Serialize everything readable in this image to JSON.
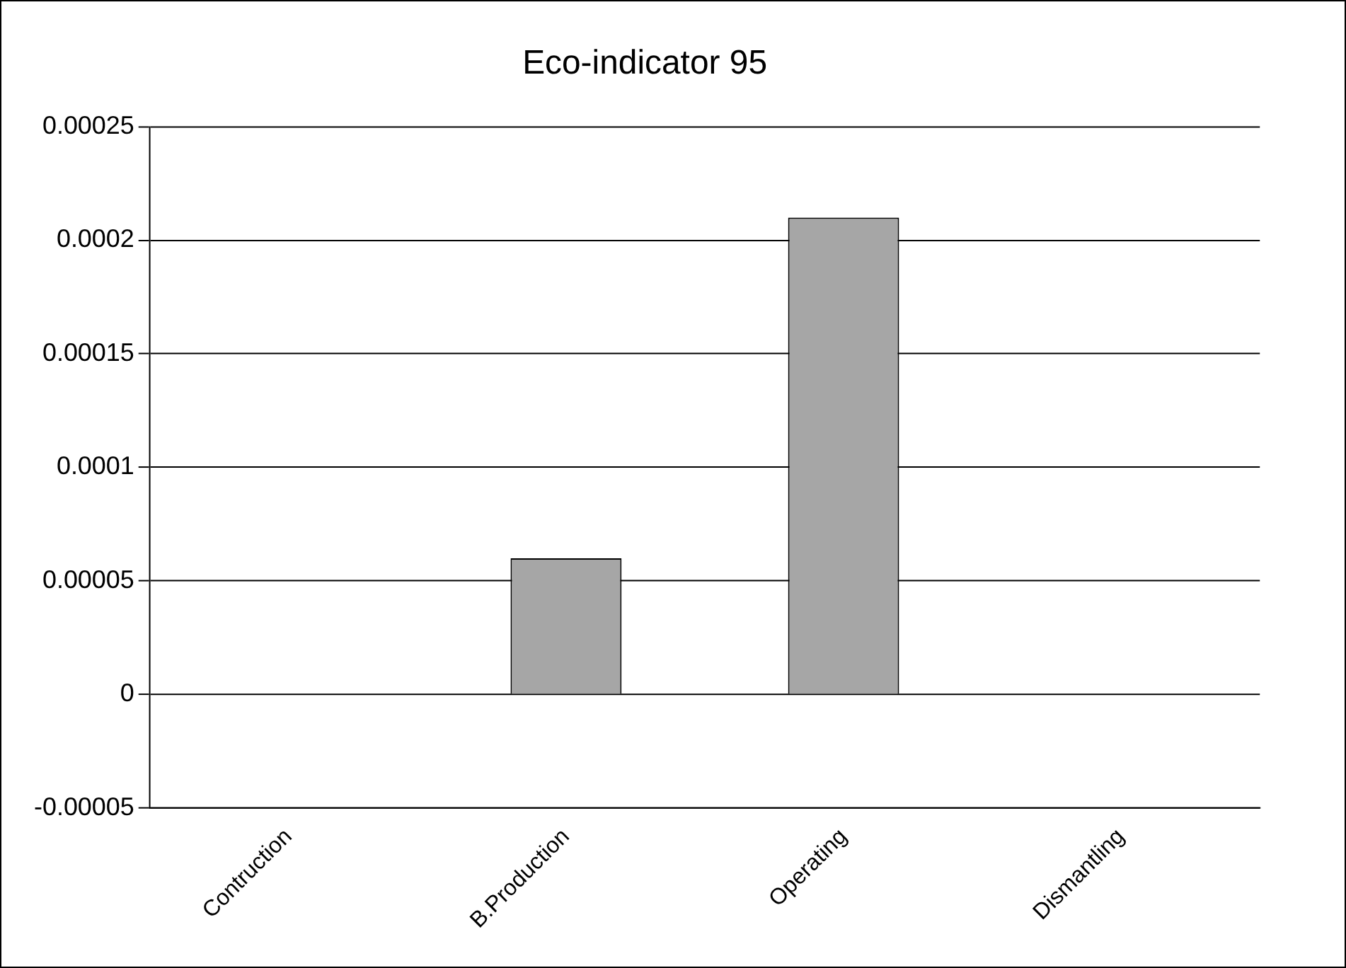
{
  "chart_data": {
    "type": "bar",
    "title": "Eco-indicator 95",
    "categories": [
      "Contruction",
      "B.Production",
      "Operating",
      "Dismantling"
    ],
    "values": [
      0,
      6e-05,
      0.00021,
      0
    ],
    "colors": [
      "#a6a6a6",
      "#a6a6a6",
      "#a6a6a6",
      "#000000"
    ],
    "ylim": [
      -5e-05,
      0.00025
    ],
    "yticks": [
      {
        "value": -5e-05,
        "label": "-0.00005"
      },
      0,
      {
        "value": 5e-05,
        "label": "0.00005"
      },
      {
        "value": 0.0001,
        "label": "0.0001"
      },
      {
        "value": 0.00015,
        "label": "0.00015"
      },
      {
        "value": 0.0002,
        "label": "0.0002"
      },
      {
        "value": 0.00025,
        "label": "0.00025"
      }
    ],
    "grid": "y"
  }
}
